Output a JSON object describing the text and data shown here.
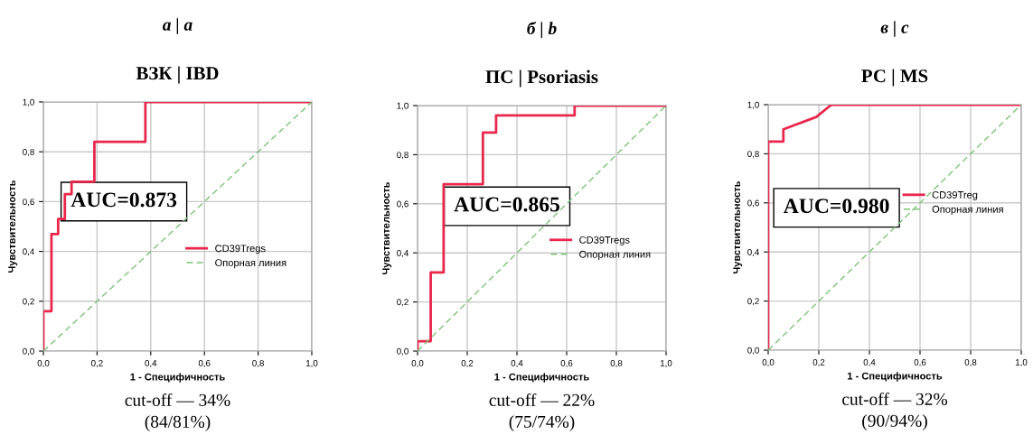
{
  "chart_data": [
    {
      "type": "line",
      "title": "а | a",
      "subtitle": "ВЗК | IBD",
      "xlabel": "1 - Специфичность",
      "ylabel": "Чувствительность",
      "xlim": [
        0,
        1
      ],
      "ylim": [
        0,
        1
      ],
      "xticks": [
        {
          "value": 0,
          "label": "0,0"
        },
        {
          "value": 0.2,
          "label": "0,2"
        },
        {
          "value": 0.4,
          "label": "0,4"
        },
        {
          "value": 0.6,
          "label": "0,6"
        },
        {
          "value": 0.8,
          "label": "0,8"
        },
        {
          "value": 1,
          "label": "1,0"
        }
      ],
      "yticks": [
        {
          "value": 0,
          "label": "0,0"
        },
        {
          "value": 0.2,
          "label": "0,2"
        },
        {
          "value": 0.4,
          "label": "0,4"
        },
        {
          "value": 0.6,
          "label": "0,6"
        },
        {
          "value": 0.8,
          "label": "0,8"
        },
        {
          "value": 1,
          "label": "1,0"
        }
      ],
      "grid": true,
      "legend": "right",
      "marker": "none",
      "series": [
        {
          "name": "CD39Tregs",
          "color": "#e8274b",
          "line_style": "solid",
          "x": [
            0,
            0,
            0.03,
            0.03,
            0.055,
            0.055,
            0.08,
            0.08,
            0.105,
            0.105,
            0.19,
            0.19,
            0.38,
            0.38,
            1
          ],
          "values": [
            0,
            0.16,
            0.16,
            0.47,
            0.47,
            0.53,
            0.53,
            0.63,
            0.63,
            0.68,
            0.68,
            0.84,
            0.84,
            1,
            1
          ]
        },
        {
          "name": "Опорная линия",
          "color": "#7cc576",
          "line_style": "dashed",
          "x": [
            0,
            1
          ],
          "values": [
            0,
            1
          ]
        }
      ],
      "annotations": [
        "AUC=0.873",
        "cut-off — 34%",
        "(84/81%)"
      ]
    },
    {
      "type": "line",
      "title": "б | b",
      "subtitle": "ПС | Psoriasis",
      "xlabel": "1 - Специфичность",
      "ylabel": "Чувствительность",
      "xlim": [
        0,
        1
      ],
      "ylim": [
        0,
        1
      ],
      "xticks": [
        {
          "value": 0,
          "label": "0,0"
        },
        {
          "value": 0.2,
          "label": "0,2"
        },
        {
          "value": 0.4,
          "label": "0,4"
        },
        {
          "value": 0.6,
          "label": "0,6"
        },
        {
          "value": 0.8,
          "label": "0,8"
        },
        {
          "value": 1,
          "label": "1,0"
        }
      ],
      "yticks": [
        {
          "value": 0,
          "label": "0,0"
        },
        {
          "value": 0.2,
          "label": "0,2"
        },
        {
          "value": 0.4,
          "label": "0,4"
        },
        {
          "value": 0.6,
          "label": "0,6"
        },
        {
          "value": 0.8,
          "label": "0,8"
        },
        {
          "value": 1,
          "label": "1,0"
        }
      ],
      "grid": true,
      "legend": "right",
      "marker": "none",
      "series": [
        {
          "name": "CD39Tregs",
          "color": "#e8274b",
          "line_style": "solid",
          "x": [
            0,
            0,
            0.053,
            0.053,
            0.105,
            0.105,
            0.263,
            0.263,
            0.316,
            0.316,
            0.632,
            0.632,
            1
          ],
          "values": [
            0,
            0.04,
            0.04,
            0.32,
            0.32,
            0.68,
            0.68,
            0.89,
            0.89,
            0.96,
            0.96,
            1,
            1
          ]
        },
        {
          "name": "Опорная линия",
          "color": "#7cc576",
          "line_style": "dashed",
          "x": [
            0,
            1
          ],
          "values": [
            0,
            1
          ]
        }
      ],
      "annotations": [
        "AUC=0.865",
        "cut-off — 22%",
        "(75/74%)"
      ]
    },
    {
      "type": "line",
      "title": "в | c",
      "subtitle": "РС | MS",
      "xlabel": "1 - Специфичность",
      "ylabel": "Чувствительность",
      "xlim": [
        0,
        1
      ],
      "ylim": [
        0,
        1
      ],
      "xticks": [
        {
          "value": 0,
          "label": "0,0"
        },
        {
          "value": 0.2,
          "label": "0,2"
        },
        {
          "value": 0.4,
          "label": "0,4"
        },
        {
          "value": 0.6,
          "label": "0,6"
        },
        {
          "value": 0.8,
          "label": "0,8"
        },
        {
          "value": 1,
          "label": "1,0"
        }
      ],
      "yticks": [
        {
          "value": 0,
          "label": "0,0"
        },
        {
          "value": 0.2,
          "label": "0,2"
        },
        {
          "value": 0.4,
          "label": "0,4"
        },
        {
          "value": 0.6,
          "label": "0,6"
        },
        {
          "value": 0.8,
          "label": "0,8"
        },
        {
          "value": 1,
          "label": "1,0"
        }
      ],
      "grid": true,
      "legend": "right",
      "marker": "none",
      "series": [
        {
          "name": "CD39Treg",
          "color": "#e8274b",
          "line_style": "solid",
          "x": [
            0,
            0,
            0.06,
            0.06,
            0.19,
            0.25,
            1
          ],
          "values": [
            0,
            0.85,
            0.85,
            0.9,
            0.95,
            1,
            1
          ]
        },
        {
          "name": "Опорная линия",
          "color": "#7cc576",
          "line_style": "dashed",
          "x": [
            0,
            1
          ],
          "values": [
            0,
            1
          ]
        }
      ],
      "annotations": [
        "AUC=0.980",
        "cut-off — 32%",
        "(90/94%)"
      ]
    }
  ]
}
